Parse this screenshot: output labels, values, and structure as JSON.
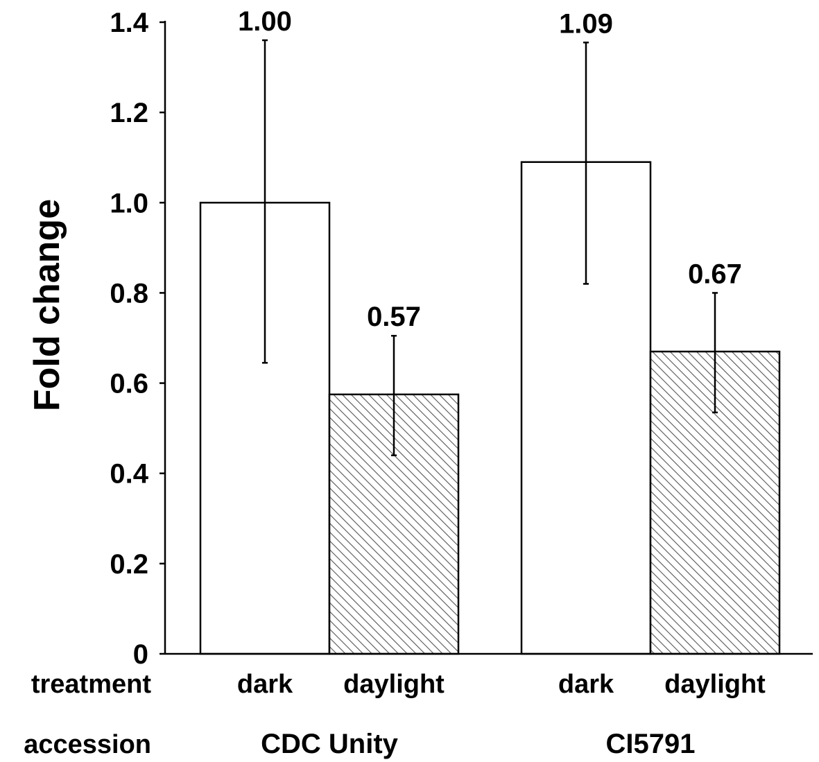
{
  "chart_data": {
    "type": "bar",
    "ylabel": "Fold change",
    "ylim": [
      0,
      1.4
    ],
    "yticks": [
      {
        "value": 0,
        "label": "0"
      },
      {
        "value": 0.2,
        "label": "0.2"
      },
      {
        "value": 0.4,
        "label": "0.4"
      },
      {
        "value": 0.6,
        "label": "0.6"
      },
      {
        "value": 0.8,
        "label": "0.8"
      },
      {
        "value": 1.0,
        "label": "1.0"
      },
      {
        "value": 1.2,
        "label": "1.2"
      },
      {
        "value": 1.4,
        "label": "1.4"
      }
    ],
    "row_labels": {
      "treatment": "treatment",
      "accession": "accession"
    },
    "groups": [
      {
        "accession": "CDC Unity",
        "bars": [
          {
            "treatment": "dark",
            "value": 1.0,
            "label": "1.00",
            "err_low": 0.645,
            "err_high": 1.36,
            "pattern": "solid"
          },
          {
            "treatment": "daylight",
            "value": 0.575,
            "label": "0.57",
            "err_low": 0.44,
            "err_high": 0.705,
            "pattern": "hatch"
          }
        ]
      },
      {
        "accession": "CI5791",
        "bars": [
          {
            "treatment": "dark",
            "value": 1.09,
            "label": "1.09",
            "err_low": 0.82,
            "err_high": 1.355,
            "pattern": "solid"
          },
          {
            "treatment": "daylight",
            "value": 0.67,
            "label": "0.67",
            "err_low": 0.535,
            "err_high": 0.8,
            "pattern": "hatch"
          }
        ]
      }
    ]
  }
}
